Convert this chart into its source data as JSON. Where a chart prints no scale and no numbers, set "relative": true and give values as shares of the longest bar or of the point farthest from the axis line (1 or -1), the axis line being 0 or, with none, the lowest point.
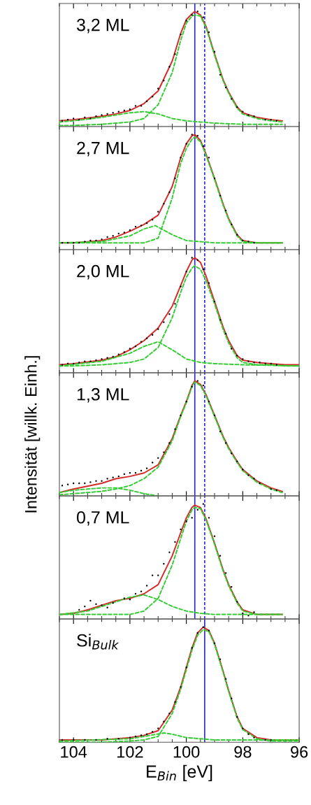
{
  "chart_data": [
    {
      "type": "line",
      "title": "3,2 ML",
      "relative": true,
      "xlim": [
        104.5,
        96
      ],
      "xticks": [
        104,
        102,
        100,
        98,
        96
      ],
      "tick_labels": false,
      "grid": false,
      "legend": false,
      "ref_lines": [
        {
          "axis": "x",
          "value": 99.7,
          "color": "#2b2bd0",
          "line_style": "solid"
        },
        {
          "axis": "x",
          "value": 99.35,
          "color": "#2b2bd0",
          "line_style": "dashed"
        }
      ],
      "series": [
        {
          "type": "scatter",
          "color": "#000000",
          "marker": "circle",
          "x": [
            104.4,
            104.2,
            104,
            103.8,
            103.6,
            103.4,
            103.2,
            103,
            102.8,
            102.6,
            102.4,
            102.2,
            102,
            101.8,
            101.6,
            101.4,
            101.2,
            101,
            100.8,
            100.6,
            100.4,
            100.2,
            100,
            99.8,
            99.6,
            99.4,
            99.2,
            99,
            98.8,
            98.6,
            98.4,
            98.2,
            98,
            97.8,
            97.6,
            97.2,
            97,
            96.8
          ],
          "values": [
            0.05,
            0.06,
            0.07,
            0.06,
            0.08,
            0.07,
            0.09,
            0.1,
            0.11,
            0.12,
            0.13,
            0.14,
            0.15,
            0.18,
            0.18,
            0.22,
            0.26,
            0.33,
            0.4,
            0.52,
            0.63,
            0.8,
            0.92,
            0.97,
            1.0,
            0.95,
            0.82,
            0.65,
            0.45,
            0.34,
            0.24,
            0.17,
            0.13,
            0.1,
            0.09,
            0.06,
            0.06,
            0.05
          ]
        },
        {
          "type": "line",
          "color": "#33cc33",
          "line_style": "dashed",
          "x": [
            104.5,
            104,
            103,
            102.5,
            102,
            101.5,
            101,
            100.5,
            100.2,
            100,
            99.8,
            99.7,
            99.5,
            99.3,
            99,
            98.7,
            98.5,
            98.2,
            98,
            97.5,
            97,
            96.6
          ],
          "values": [
            0.01,
            0.01,
            0.02,
            0.03,
            0.04,
            0.07,
            0.19,
            0.47,
            0.75,
            0.9,
            0.96,
            0.97,
            0.96,
            0.86,
            0.62,
            0.4,
            0.29,
            0.16,
            0.11,
            0.07,
            0.05,
            0.04
          ]
        },
        {
          "type": "line",
          "color": "#33cc33",
          "line_style": "dashed",
          "x": [
            104.5,
            104,
            103,
            102.5,
            102,
            101.5,
            101,
            100.5,
            100,
            99.5,
            99,
            98,
            97,
            96.6
          ],
          "values": [
            0.04,
            0.05,
            0.08,
            0.1,
            0.12,
            0.13,
            0.11,
            0.07,
            0.05,
            0.04,
            0.03,
            0.02,
            0.02,
            0.02
          ]
        },
        {
          "type": "line",
          "color": "#d42a2a",
          "line_style": "solid",
          "x": [
            104.5,
            104,
            103,
            102.5,
            102,
            101.5,
            101,
            100.5,
            100.2,
            100,
            99.8,
            99.7,
            99.5,
            99.3,
            99,
            98.7,
            98.5,
            98.2,
            98,
            97.5,
            97,
            96.6
          ],
          "values": [
            0.05,
            0.06,
            0.09,
            0.11,
            0.14,
            0.2,
            0.31,
            0.57,
            0.81,
            0.93,
            0.98,
            1.0,
            0.97,
            0.87,
            0.63,
            0.41,
            0.3,
            0.17,
            0.12,
            0.08,
            0.06,
            0.05
          ]
        }
      ]
    },
    {
      "type": "line",
      "title": "2,7 ML",
      "relative": true,
      "xlim": [
        104.5,
        96
      ],
      "xticks": [
        104,
        102,
        100,
        98,
        96
      ],
      "tick_labels": false,
      "grid": false,
      "legend": false,
      "ref_lines": [
        {
          "axis": "x",
          "value": 99.7,
          "color": "#2b2bd0",
          "line_style": "solid"
        },
        {
          "axis": "x",
          "value": 99.35,
          "color": "#2b2bd0",
          "line_style": "dashed"
        }
      ],
      "series": [
        {
          "type": "scatter",
          "color": "#000000",
          "marker": "circle",
          "x": [
            104.4,
            104.2,
            104,
            103.8,
            103.6,
            103.4,
            103.2,
            103,
            102.8,
            102.6,
            102.4,
            102.2,
            102,
            101.8,
            101.6,
            101.4,
            101.2,
            101,
            100.8,
            100.6,
            100.4,
            100.2,
            100,
            99.8,
            99.6,
            99.4,
            99.2,
            99,
            98.8,
            98.6,
            98.4,
            98.2,
            98,
            97.8,
            97.6
          ],
          "values": [
            0.06,
            0.06,
            0.06,
            0.06,
            0.07,
            0.08,
            0.08,
            0.09,
            0.11,
            0.12,
            0.14,
            0.15,
            0.17,
            0.2,
            0.21,
            0.23,
            0.26,
            0.33,
            0.4,
            0.5,
            0.62,
            0.8,
            0.92,
            1.0,
            0.99,
            0.9,
            0.8,
            0.62,
            0.47,
            0.34,
            0.22,
            0.13,
            0.08,
            0.07,
            0.06
          ]
        },
        {
          "type": "line",
          "color": "#33cc33",
          "line_style": "dashed",
          "x": [
            104.5,
            104,
            103,
            102.5,
            102,
            101.5,
            101,
            100.5,
            100.2,
            100,
            99.8,
            99.7,
            99.5,
            99.3,
            99,
            98.7,
            98.5,
            98.2,
            98,
            97.5,
            97,
            96.6
          ],
          "values": [
            0.06,
            0.06,
            0.06,
            0.06,
            0.06,
            0.06,
            0.1,
            0.45,
            0.75,
            0.88,
            0.96,
            0.98,
            0.94,
            0.82,
            0.61,
            0.39,
            0.26,
            0.12,
            0.07,
            0.06,
            0.06,
            0.06
          ]
        },
        {
          "type": "line",
          "color": "#33cc33",
          "line_style": "dashed",
          "x": [
            104.5,
            103,
            102,
            101.5,
            101.1,
            100.5,
            100,
            99.5,
            99,
            96.6
          ],
          "values": [
            0.06,
            0.07,
            0.12,
            0.18,
            0.21,
            0.13,
            0.08,
            0.07,
            0.06,
            0.06
          ]
        },
        {
          "type": "line",
          "color": "#d42a2a",
          "line_style": "solid",
          "x": [
            104.5,
            104,
            103,
            102.5,
            102,
            101.5,
            101,
            100.5,
            100.2,
            100,
            99.8,
            99.7,
            99.5,
            99.3,
            99,
            98.7,
            98.5,
            98.2,
            98,
            97.5,
            97,
            96.6
          ],
          "values": [
            0.06,
            0.06,
            0.08,
            0.11,
            0.16,
            0.22,
            0.3,
            0.55,
            0.8,
            0.92,
            0.99,
            1.0,
            0.95,
            0.83,
            0.62,
            0.4,
            0.27,
            0.13,
            0.08,
            0.06,
            0.06,
            0.06
          ]
        }
      ]
    },
    {
      "type": "line",
      "title": "2,0 ML",
      "relative": true,
      "xlim": [
        104.5,
        96
      ],
      "xticks": [
        104,
        102,
        100,
        98,
        96
      ],
      "tick_labels": false,
      "grid": false,
      "legend": false,
      "ref_lines": [
        {
          "axis": "x",
          "value": 99.7,
          "color": "#2b2bd0",
          "line_style": "solid"
        },
        {
          "axis": "x",
          "value": 99.35,
          "color": "#2b2bd0",
          "line_style": "dashed"
        }
      ],
      "series": [
        {
          "type": "scatter",
          "color": "#000000",
          "marker": "circle",
          "x": [
            104.4,
            104.2,
            104,
            103.8,
            103.6,
            103.4,
            103.2,
            103,
            102.8,
            102.6,
            102.4,
            102.2,
            102,
            101.8,
            101.6,
            101.4,
            101.2,
            101,
            100.8,
            100.6,
            100.4,
            100.2,
            100,
            99.8,
            99.6,
            99.4,
            99.2,
            99,
            98.8,
            98.6,
            98.4,
            98.2,
            98,
            97.8,
            97.6,
            97.4,
            97.2,
            97,
            96.8
          ],
          "values": [
            0.07,
            0.08,
            0.08,
            0.09,
            0.1,
            0.1,
            0.11,
            0.12,
            0.13,
            0.14,
            0.16,
            0.18,
            0.21,
            0.23,
            0.27,
            0.3,
            0.33,
            0.38,
            0.44,
            0.51,
            0.6,
            0.75,
            0.88,
            1.0,
            0.98,
            0.9,
            0.78,
            0.62,
            0.46,
            0.34,
            0.21,
            0.15,
            0.12,
            0.1,
            0.09,
            0.09,
            0.08,
            0.08,
            0.07
          ]
        },
        {
          "type": "line",
          "color": "#33cc33",
          "line_style": "dashed",
          "x": [
            104.5,
            104,
            103,
            102.5,
            102,
            101.5,
            101,
            100.5,
            100.2,
            100,
            99.8,
            99.7,
            99.5,
            99.3,
            99,
            98.7,
            98.5,
            98.2,
            98,
            97.5,
            97,
            96.5,
            96
          ],
          "values": [
            0.06,
            0.06,
            0.07,
            0.08,
            0.09,
            0.12,
            0.22,
            0.48,
            0.7,
            0.83,
            0.91,
            0.93,
            0.9,
            0.8,
            0.6,
            0.38,
            0.26,
            0.13,
            0.09,
            0.07,
            0.07,
            0.06,
            0.06
          ]
        },
        {
          "type": "line",
          "color": "#33cc33",
          "line_style": "dashed",
          "x": [
            104.5,
            103,
            102,
            101.5,
            101,
            100.5,
            100,
            99.5,
            99,
            98,
            96
          ],
          "values": [
            0.06,
            0.1,
            0.17,
            0.23,
            0.27,
            0.2,
            0.12,
            0.09,
            0.08,
            0.07,
            0.06
          ]
        },
        {
          "type": "line",
          "color": "#d42a2a",
          "line_style": "solid",
          "x": [
            104.5,
            104,
            103,
            102.5,
            102,
            101.5,
            101,
            100.5,
            100.2,
            100,
            99.8,
            99.7,
            99.5,
            99.3,
            99,
            98.7,
            98.5,
            98.2,
            98,
            97.5,
            97,
            96.5,
            96
          ],
          "values": [
            0.07,
            0.08,
            0.11,
            0.14,
            0.2,
            0.28,
            0.39,
            0.58,
            0.76,
            0.88,
            0.98,
            1.0,
            0.96,
            0.84,
            0.62,
            0.4,
            0.28,
            0.15,
            0.11,
            0.09,
            0.08,
            0.07,
            0.07
          ]
        }
      ]
    },
    {
      "type": "line",
      "title": "1,3 ML",
      "ylabel": "Intensität [willk. Einh.]",
      "relative": true,
      "xlim": [
        104.5,
        96
      ],
      "xticks": [
        104,
        102,
        100,
        98,
        96
      ],
      "tick_labels": false,
      "grid": false,
      "legend": false,
      "ref_lines": [
        {
          "axis": "x",
          "value": 99.7,
          "color": "#2b2bd0",
          "line_style": "solid"
        },
        {
          "axis": "x",
          "value": 99.35,
          "color": "#2b2bd0",
          "line_style": "dashed"
        }
      ],
      "series": [
        {
          "type": "scatter",
          "color": "#000000",
          "marker": "circle",
          "x": [
            104.4,
            104.2,
            104,
            103.8,
            103.6,
            103.4,
            103.2,
            103,
            102.8,
            102.6,
            102.4,
            102.2,
            102,
            101.8,
            101.6,
            101.4,
            101.2,
            101,
            100.8,
            100.6,
            100.4,
            100.2,
            100,
            99.8,
            99.6,
            99.4,
            99.2,
            99,
            98.8,
            98.6,
            98.4,
            98.2,
            98,
            97.8,
            97.6,
            97.4,
            97,
            96.8
          ],
          "values": [
            0.09,
            0.1,
            0.11,
            0.11,
            0.11,
            0.12,
            0.13,
            0.13,
            0.15,
            0.16,
            0.17,
            0.19,
            0.2,
            0.2,
            0.22,
            0.24,
            0.29,
            0.33,
            0.38,
            0.46,
            0.58,
            0.7,
            0.82,
            0.95,
            1.0,
            0.96,
            0.82,
            0.7,
            0.56,
            0.46,
            0.37,
            0.3,
            0.23,
            0.18,
            0.15,
            0.11,
            0.06,
            0.05
          ]
        },
        {
          "type": "line",
          "color": "#33cc33",
          "line_style": "dashed",
          "x": [
            104.5,
            104,
            103,
            102.5,
            102,
            101.5,
            101,
            100.5,
            100.2,
            100,
            99.8,
            99.7,
            99.5,
            99.3,
            99,
            98.7,
            98.5,
            98.2,
            98,
            97.5,
            97,
            96.6
          ],
          "values": [
            0.01,
            0.02,
            0.04,
            0.06,
            0.09,
            0.15,
            0.25,
            0.48,
            0.69,
            0.81,
            0.95,
            0.99,
            0.96,
            0.87,
            0.69,
            0.51,
            0.41,
            0.29,
            0.22,
            0.12,
            0.06,
            0.03
          ]
        },
        {
          "type": "line",
          "color": "#33cc33",
          "line_style": "dashed",
          "x": [
            104.5,
            104,
            103,
            102.5,
            102,
            101.5,
            101
          ],
          "values": [
            0.03,
            0.05,
            0.07,
            0.07,
            0.05,
            0.02,
            0.0
          ]
        },
        {
          "type": "line",
          "color": "#d42a2a",
          "line_style": "solid",
          "x": [
            104.5,
            104,
            103,
            102.5,
            102,
            101.5,
            101,
            100.5,
            100.2,
            100,
            99.8,
            99.7,
            99.5,
            99.3,
            99,
            98.7,
            98.5,
            98.2,
            98,
            97.5,
            97,
            96.6
          ],
          "values": [
            0.03,
            0.06,
            0.11,
            0.15,
            0.17,
            0.2,
            0.27,
            0.5,
            0.7,
            0.82,
            0.96,
            1.0,
            0.97,
            0.88,
            0.7,
            0.52,
            0.42,
            0.3,
            0.23,
            0.13,
            0.07,
            0.04
          ]
        }
      ]
    },
    {
      "type": "line",
      "title": "0,7 ML",
      "relative": true,
      "xlim": [
        104.5,
        96
      ],
      "xticks": [
        104,
        102,
        100,
        98,
        96
      ],
      "tick_labels": false,
      "grid": false,
      "legend": false,
      "ref_lines": [
        {
          "axis": "x",
          "value": 99.7,
          "color": "#2b2bd0",
          "line_style": "solid"
        },
        {
          "axis": "x",
          "value": 99.35,
          "color": "#2b2bd0",
          "line_style": "dashed"
        }
      ],
      "series": [
        {
          "type": "scatter",
          "color": "#000000",
          "marker": "circle",
          "x": [
            103.8,
            103.6,
            103.4,
            103.2,
            103,
            102.8,
            102.6,
            102.2,
            102,
            101.8,
            101.6,
            101.4,
            101.2,
            101,
            100.8,
            100.6,
            100.4,
            100.2,
            100,
            99.8,
            99.6,
            99.4,
            99.2,
            99,
            98.8,
            98.6,
            98.4,
            98.2,
            98,
            97.8,
            97.6
          ],
          "values": [
            0.08,
            0.11,
            0.16,
            0.13,
            0.12,
            0.1,
            0.14,
            0.18,
            0.17,
            0.22,
            0.24,
            0.29,
            0.38,
            0.38,
            0.48,
            0.58,
            0.67,
            0.78,
            0.85,
            0.88,
            0.95,
            1.0,
            0.88,
            0.72,
            0.55,
            0.4,
            0.28,
            0.15,
            0.05,
            0.03,
            0.06
          ]
        },
        {
          "type": "line",
          "color": "#33cc33",
          "line_style": "dashed",
          "x": [
            104.5,
            104,
            103,
            102.5,
            102,
            101.5,
            101,
            100.5,
            100.2,
            100,
            99.8,
            99.7,
            99.5,
            99.3,
            99,
            98.7,
            98.5,
            98.2,
            98,
            97.5,
            97,
            96.6
          ],
          "values": [
            0.04,
            0.04,
            0.04,
            0.04,
            0.04,
            0.07,
            0.18,
            0.47,
            0.7,
            0.85,
            0.95,
            0.97,
            0.96,
            0.86,
            0.65,
            0.42,
            0.29,
            0.14,
            0.07,
            0.04,
            0.04,
            0.04
          ]
        },
        {
          "type": "line",
          "color": "#33cc33",
          "line_style": "dashed",
          "x": [
            104.5,
            103.5,
            103,
            102.5,
            102,
            101.5,
            101,
            100.5,
            100,
            99.5,
            99,
            96.6
          ],
          "values": [
            0.04,
            0.07,
            0.11,
            0.15,
            0.19,
            0.21,
            0.17,
            0.11,
            0.07,
            0.05,
            0.04,
            0.04
          ]
        },
        {
          "type": "line",
          "color": "#d42a2a",
          "line_style": "solid",
          "x": [
            104.5,
            104,
            103.5,
            103,
            102.5,
            102,
            101.5,
            101,
            100.5,
            100.2,
            100,
            99.8,
            99.7,
            99.5,
            99.3,
            99,
            98.7,
            98.5,
            98.2,
            98,
            97.5,
            97,
            96.6
          ],
          "values": [
            0.04,
            0.05,
            0.08,
            0.12,
            0.16,
            0.18,
            0.22,
            0.3,
            0.55,
            0.75,
            0.88,
            0.97,
            0.99,
            0.97,
            0.87,
            0.66,
            0.43,
            0.3,
            0.15,
            0.08,
            0.04,
            0.04,
            0.04
          ]
        }
      ]
    },
    {
      "type": "line",
      "title": "Si$_{Bulk}$",
      "xlabel": "E$_{Bin}$ [eV]",
      "relative": true,
      "xlim": [
        104.5,
        96
      ],
      "xticks": [
        104,
        102,
        100,
        98,
        96
      ],
      "tick_labels": "x",
      "grid": false,
      "legend": false,
      "ref_lines": [
        {
          "axis": "x",
          "value": 99.35,
          "color": "#2b2bd0",
          "line_style": "solid"
        }
      ],
      "series": [
        {
          "type": "scatter",
          "color": "#000000",
          "marker": "circle",
          "x": [
            104.4,
            104,
            103.6,
            103.2,
            102.8,
            102.4,
            102,
            101.8,
            101.6,
            101.4,
            101.2,
            101,
            100.8,
            100.6,
            100.4,
            100.2,
            100,
            99.8,
            99.6,
            99.4,
            99.2,
            99,
            98.8,
            98.6,
            98.4,
            98.2,
            98,
            97.8,
            97.6,
            97.2,
            97
          ],
          "values": [
            0.02,
            0.02,
            0.02,
            0.02,
            0.03,
            0.03,
            0.04,
            0.05,
            0.06,
            0.07,
            0.09,
            0.12,
            0.18,
            0.25,
            0.35,
            0.48,
            0.65,
            0.82,
            0.95,
            1.0,
            0.97,
            0.86,
            0.72,
            0.55,
            0.38,
            0.22,
            0.12,
            0.07,
            0.04,
            0.02,
            0.02
          ]
        },
        {
          "type": "line",
          "color": "#33cc33",
          "line_style": "dashed",
          "x": [
            104.5,
            104,
            103,
            102,
            101.5,
            101,
            100.5,
            100.2,
            100,
            99.8,
            99.6,
            99.4,
            99.2,
            99,
            98.7,
            98.5,
            98.2,
            98,
            97.5,
            97,
            96.5,
            96
          ],
          "values": [
            0.0,
            0.0,
            0.0,
            0.01,
            0.02,
            0.05,
            0.25,
            0.46,
            0.63,
            0.8,
            0.93,
            0.98,
            0.96,
            0.85,
            0.61,
            0.44,
            0.21,
            0.11,
            0.03,
            0.01,
            0.01,
            0.01
          ]
        },
        {
          "type": "line",
          "color": "#33cc33",
          "line_style": "dashed",
          "x": [
            104.5,
            102,
            101.5,
            100.8,
            100.5,
            100,
            99.5,
            99,
            96
          ],
          "values": [
            0.01,
            0.03,
            0.05,
            0.08,
            0.07,
            0.04,
            0.03,
            0.02,
            0.02
          ]
        },
        {
          "type": "line",
          "color": "#d42a2a",
          "line_style": "solid",
          "x": [
            104.5,
            104,
            103,
            102,
            101.5,
            101,
            100.5,
            100.2,
            100,
            99.8,
            99.6,
            99.4,
            99.2,
            99,
            98.7,
            98.5,
            98.2,
            98,
            97.5,
            97,
            96.5,
            96
          ],
          "values": [
            0.02,
            0.02,
            0.02,
            0.04,
            0.06,
            0.1,
            0.28,
            0.48,
            0.65,
            0.82,
            0.95,
            1.0,
            0.97,
            0.86,
            0.62,
            0.45,
            0.22,
            0.12,
            0.04,
            0.02,
            0.02,
            0.02
          ]
        }
      ]
    }
  ]
}
